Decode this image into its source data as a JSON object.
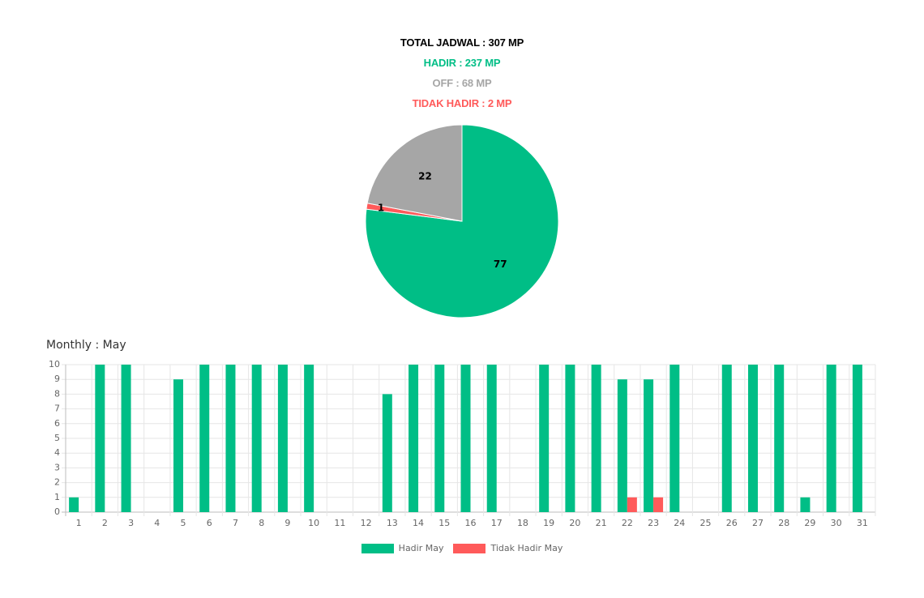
{
  "summary": {
    "total": "TOTAL JADWAL : 307 MP",
    "hadir": "HADIR : 237 MP",
    "off": "OFF : 68 MP",
    "tidak_hadir": "TIDAK HADIR : 2 MP"
  },
  "colors": {
    "total": "#000000",
    "hadir": "#00be86",
    "off": "#a6a6a6",
    "tidak_hadir": "#ff5a5a"
  },
  "monthly_title": "Monthly : May",
  "chart_data": [
    {
      "type": "pie",
      "title": "",
      "slices": [
        {
          "label": "77",
          "value": 77,
          "color": "#00be86"
        },
        {
          "label": "1",
          "value": 1,
          "color": "#ff5a5a"
        },
        {
          "label": "22",
          "value": 22,
          "color": "#a6a6a6"
        }
      ]
    },
    {
      "type": "bar",
      "title": "",
      "xlabel": "",
      "ylabel": "",
      "ylim": [
        0,
        10
      ],
      "yticks": [
        0,
        1,
        2,
        3,
        4,
        5,
        6,
        7,
        8,
        9,
        10
      ],
      "grid": true,
      "legend_position": "bottom",
      "categories": [
        "1",
        "2",
        "3",
        "4",
        "5",
        "6",
        "7",
        "8",
        "9",
        "10",
        "11",
        "12",
        "13",
        "14",
        "15",
        "16",
        "17",
        "18",
        "19",
        "20",
        "21",
        "22",
        "23",
        "24",
        "25",
        "26",
        "27",
        "28",
        "29",
        "30",
        "31"
      ],
      "series": [
        {
          "name": "Hadir May",
          "color": "#00be86",
          "values": [
            1,
            10,
            10,
            0,
            9,
            10,
            10,
            10,
            10,
            10,
            0,
            0,
            8,
            10,
            10,
            10,
            10,
            0,
            10,
            10,
            10,
            9,
            9,
            10,
            0,
            10,
            10,
            10,
            1,
            10,
            10
          ]
        },
        {
          "name": "Tidak Hadir May",
          "color": "#ff5a5a",
          "values": [
            0,
            0,
            0,
            0,
            0,
            0,
            0,
            0,
            0,
            0,
            0,
            0,
            0,
            0,
            0,
            0,
            0,
            0,
            0,
            0,
            0,
            1,
            1,
            0,
            0,
            0,
            0,
            0,
            0,
            0,
            0
          ]
        }
      ]
    }
  ]
}
